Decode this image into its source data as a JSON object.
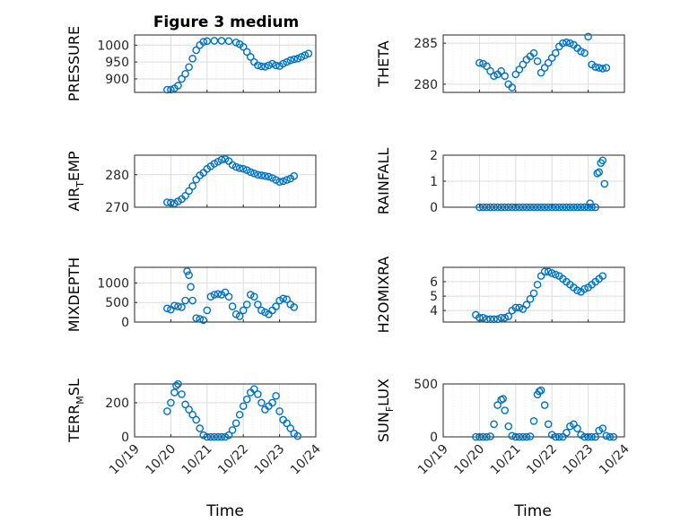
{
  "chart_data": {
    "type": "scatter",
    "title": "Figure 3 medium",
    "x_tick_labels": [
      "10/19",
      "10/20",
      "10/21",
      "10/22",
      "10/23",
      "10/24"
    ],
    "xlim_days": [
      0,
      5
    ],
    "series_color": "#0072BD",
    "panels": [
      {
        "id": "pressure",
        "ylabel": "PRESSURE",
        "ylim": [
          860,
          1030
        ],
        "yticks": [
          900,
          950,
          1000
        ],
        "points": [
          [
            0.9,
            868
          ],
          [
            1.0,
            868
          ],
          [
            1.1,
            872
          ],
          [
            1.2,
            880
          ],
          [
            1.3,
            900
          ],
          [
            1.4,
            915
          ],
          [
            1.5,
            935
          ],
          [
            1.6,
            960
          ],
          [
            1.7,
            985
          ],
          [
            1.8,
            1000
          ],
          [
            1.9,
            1010
          ],
          [
            2.0,
            1012
          ],
          [
            2.2,
            1013
          ],
          [
            2.4,
            1013
          ],
          [
            2.6,
            1012
          ],
          [
            2.8,
            1008
          ],
          [
            2.9,
            1003
          ],
          [
            3.0,
            995
          ],
          [
            3.1,
            980
          ],
          [
            3.2,
            965
          ],
          [
            3.3,
            950
          ],
          [
            3.4,
            940
          ],
          [
            3.5,
            937
          ],
          [
            3.6,
            936
          ],
          [
            3.7,
            940
          ],
          [
            3.8,
            945
          ],
          [
            3.9,
            940
          ],
          [
            4.0,
            938
          ],
          [
            4.1,
            945
          ],
          [
            4.2,
            950
          ],
          [
            4.3,
            955
          ],
          [
            4.4,
            958
          ],
          [
            4.5,
            960
          ],
          [
            4.6,
            965
          ],
          [
            4.7,
            970
          ],
          [
            4.8,
            975
          ]
        ]
      },
      {
        "id": "theta",
        "ylabel": "THETA",
        "ylim": [
          279,
          286
        ],
        "yticks": [
          280,
          285
        ],
        "points": [
          [
            1.0,
            282.6
          ],
          [
            1.1,
            282.5
          ],
          [
            1.2,
            282.2
          ],
          [
            1.3,
            281.6
          ],
          [
            1.4,
            281.0
          ],
          [
            1.5,
            281.2
          ],
          [
            1.6,
            281.6
          ],
          [
            1.7,
            281.0
          ],
          [
            1.8,
            280.0
          ],
          [
            1.9,
            279.6
          ],
          [
            2.0,
            281.2
          ],
          [
            2.1,
            281.8
          ],
          [
            2.2,
            282.4
          ],
          [
            2.3,
            283.0
          ],
          [
            2.4,
            283.4
          ],
          [
            2.5,
            283.8
          ],
          [
            2.6,
            282.8
          ],
          [
            2.7,
            281.4
          ],
          [
            2.8,
            282.0
          ],
          [
            2.9,
            282.6
          ],
          [
            3.0,
            283.2
          ],
          [
            3.1,
            283.8
          ],
          [
            3.2,
            284.6
          ],
          [
            3.3,
            285.0
          ],
          [
            3.4,
            285.1
          ],
          [
            3.5,
            285.0
          ],
          [
            3.6,
            284.8
          ],
          [
            3.7,
            284.4
          ],
          [
            3.8,
            284.0
          ],
          [
            3.9,
            283.8
          ],
          [
            4.0,
            285.8
          ],
          [
            4.1,
            282.4
          ],
          [
            4.2,
            282.1
          ],
          [
            4.3,
            282.0
          ],
          [
            4.4,
            281.9
          ],
          [
            4.5,
            282.0
          ]
        ]
      },
      {
        "id": "air_temp",
        "ylabel_main": "AIR",
        "ylabel_sub": "T",
        "ylabel_rest": "EMP",
        "ylim": [
          270,
          286
        ],
        "yticks": [
          270,
          280
        ],
        "points": [
          [
            0.9,
            271.5
          ],
          [
            1.0,
            271.4
          ],
          [
            1.1,
            271.2
          ],
          [
            1.2,
            271.8
          ],
          [
            1.3,
            272.5
          ],
          [
            1.4,
            273.5
          ],
          [
            1.5,
            275.0
          ],
          [
            1.6,
            276.5
          ],
          [
            1.7,
            278.5
          ],
          [
            1.8,
            279.8
          ],
          [
            1.9,
            280.6
          ],
          [
            2.0,
            281.8
          ],
          [
            2.1,
            282.6
          ],
          [
            2.2,
            283.4
          ],
          [
            2.3,
            284.0
          ],
          [
            2.4,
            284.6
          ],
          [
            2.5,
            284.8
          ],
          [
            2.6,
            284.2
          ],
          [
            2.7,
            283.0
          ],
          [
            2.8,
            282.4
          ],
          [
            2.9,
            282.0
          ],
          [
            3.0,
            281.8
          ],
          [
            3.1,
            281.4
          ],
          [
            3.2,
            280.8
          ],
          [
            3.3,
            280.4
          ],
          [
            3.4,
            280.0
          ],
          [
            3.5,
            279.8
          ],
          [
            3.6,
            279.6
          ],
          [
            3.7,
            279.4
          ],
          [
            3.8,
            279.0
          ],
          [
            3.9,
            278.4
          ],
          [
            4.0,
            277.8
          ],
          [
            4.1,
            278.0
          ],
          [
            4.2,
            278.4
          ],
          [
            4.3,
            278.8
          ],
          [
            4.4,
            279.6
          ]
        ]
      },
      {
        "id": "rainfall",
        "ylabel": "RAINFALL",
        "ylim": [
          0,
          2
        ],
        "yticks": [
          0,
          1,
          2
        ],
        "points": [
          [
            1.0,
            0
          ],
          [
            1.1,
            0
          ],
          [
            1.2,
            0
          ],
          [
            1.3,
            0
          ],
          [
            1.4,
            0
          ],
          [
            1.5,
            0
          ],
          [
            1.6,
            0
          ],
          [
            1.7,
            0
          ],
          [
            1.8,
            0
          ],
          [
            1.9,
            0
          ],
          [
            2.0,
            0
          ],
          [
            2.1,
            0
          ],
          [
            2.2,
            0
          ],
          [
            2.3,
            0
          ],
          [
            2.4,
            0
          ],
          [
            2.5,
            0
          ],
          [
            2.6,
            0
          ],
          [
            2.7,
            0
          ],
          [
            2.8,
            0
          ],
          [
            2.9,
            0
          ],
          [
            3.0,
            0
          ],
          [
            3.1,
            0
          ],
          [
            3.2,
            0
          ],
          [
            3.3,
            0
          ],
          [
            3.4,
            0
          ],
          [
            3.5,
            0
          ],
          [
            3.6,
            0
          ],
          [
            3.7,
            0
          ],
          [
            3.8,
            0
          ],
          [
            3.9,
            0
          ],
          [
            4.0,
            0
          ],
          [
            4.1,
            0
          ],
          [
            4.2,
            0
          ],
          [
            4.05,
            0.15
          ],
          [
            4.25,
            1.3
          ],
          [
            4.3,
            1.35
          ],
          [
            4.35,
            1.7
          ],
          [
            4.4,
            1.8
          ],
          [
            4.45,
            0.9
          ]
        ]
      },
      {
        "id": "mixdepth",
        "ylabel": "MIXDEPTH",
        "ylim": [
          0,
          1400
        ],
        "yticks": [
          0,
          500,
          1000
        ],
        "points": [
          [
            0.9,
            350
          ],
          [
            1.0,
            320
          ],
          [
            1.1,
            420
          ],
          [
            1.2,
            400
          ],
          [
            1.3,
            380
          ],
          [
            1.4,
            550
          ],
          [
            1.45,
            1300
          ],
          [
            1.5,
            1200
          ],
          [
            1.55,
            900
          ],
          [
            1.6,
            550
          ],
          [
            1.7,
            100
          ],
          [
            1.8,
            80
          ],
          [
            1.9,
            50
          ],
          [
            2.0,
            300
          ],
          [
            2.1,
            650
          ],
          [
            2.2,
            700
          ],
          [
            2.3,
            720
          ],
          [
            2.4,
            700
          ],
          [
            2.5,
            760
          ],
          [
            2.6,
            650
          ],
          [
            2.7,
            400
          ],
          [
            2.8,
            200
          ],
          [
            2.9,
            150
          ],
          [
            3.0,
            300
          ],
          [
            3.1,
            450
          ],
          [
            3.2,
            700
          ],
          [
            3.3,
            650
          ],
          [
            3.4,
            450
          ],
          [
            3.5,
            300
          ],
          [
            3.6,
            250
          ],
          [
            3.7,
            200
          ],
          [
            3.8,
            300
          ],
          [
            3.9,
            400
          ],
          [
            4.0,
            550
          ],
          [
            4.1,
            600
          ],
          [
            4.2,
            580
          ],
          [
            4.3,
            450
          ],
          [
            4.4,
            380
          ]
        ]
      },
      {
        "id": "h2omixra",
        "ylabel": "H2OMIXRA",
        "ylim": [
          3.2,
          7
        ],
        "yticks": [
          4,
          5,
          6
        ],
        "points": [
          [
            0.9,
            3.7
          ],
          [
            1.0,
            3.5
          ],
          [
            1.1,
            3.5
          ],
          [
            1.2,
            3.4
          ],
          [
            1.3,
            3.4
          ],
          [
            1.4,
            3.4
          ],
          [
            1.5,
            3.4
          ],
          [
            1.6,
            3.5
          ],
          [
            1.7,
            3.5
          ],
          [
            1.8,
            3.6
          ],
          [
            1.9,
            4.0
          ],
          [
            2.0,
            4.2
          ],
          [
            2.1,
            4.2
          ],
          [
            2.2,
            4.1
          ],
          [
            2.3,
            4.4
          ],
          [
            2.4,
            4.8
          ],
          [
            2.5,
            5.2
          ],
          [
            2.6,
            5.8
          ],
          [
            2.7,
            6.4
          ],
          [
            2.8,
            6.7
          ],
          [
            2.9,
            6.7
          ],
          [
            3.0,
            6.6
          ],
          [
            3.1,
            6.5
          ],
          [
            3.2,
            6.4
          ],
          [
            3.3,
            6.2
          ],
          [
            3.4,
            6.0
          ],
          [
            3.5,
            5.8
          ],
          [
            3.6,
            5.6
          ],
          [
            3.7,
            5.4
          ],
          [
            3.8,
            5.3
          ],
          [
            3.9,
            5.5
          ],
          [
            4.0,
            5.6
          ],
          [
            4.1,
            5.8
          ],
          [
            4.2,
            6.0
          ],
          [
            4.3,
            6.2
          ],
          [
            4.4,
            6.4
          ]
        ]
      },
      {
        "id": "terr_msl",
        "ylabel_main": "TERR",
        "ylabel_sub": "M",
        "ylabel_rest": "SL",
        "ylim": [
          0,
          310
        ],
        "yticks": [
          0,
          200
        ],
        "points": [
          [
            0.9,
            150
          ],
          [
            1.0,
            200
          ],
          [
            1.1,
            260
          ],
          [
            1.15,
            300
          ],
          [
            1.2,
            310
          ],
          [
            1.3,
            250
          ],
          [
            1.4,
            190
          ],
          [
            1.5,
            160
          ],
          [
            1.6,
            130
          ],
          [
            1.7,
            100
          ],
          [
            1.8,
            50
          ],
          [
            1.9,
            10
          ],
          [
            2.0,
            0
          ],
          [
            2.1,
            0
          ],
          [
            2.2,
            0
          ],
          [
            2.3,
            0
          ],
          [
            2.4,
            0
          ],
          [
            2.5,
            0
          ],
          [
            2.6,
            10
          ],
          [
            2.7,
            40
          ],
          [
            2.8,
            80
          ],
          [
            2.9,
            130
          ],
          [
            3.0,
            180
          ],
          [
            3.1,
            220
          ],
          [
            3.2,
            260
          ],
          [
            3.3,
            280
          ],
          [
            3.4,
            250
          ],
          [
            3.5,
            200
          ],
          [
            3.6,
            160
          ],
          [
            3.7,
            180
          ],
          [
            3.8,
            200
          ],
          [
            3.9,
            240
          ],
          [
            4.0,
            150
          ],
          [
            4.1,
            100
          ],
          [
            4.2,
            80
          ],
          [
            4.3,
            50
          ],
          [
            4.4,
            20
          ],
          [
            4.5,
            5
          ]
        ]
      },
      {
        "id": "sun_flux",
        "ylabel_main": "SUN",
        "ylabel_sub": "F",
        "ylabel_rest": "LUX",
        "ylim": [
          0,
          500
        ],
        "yticks": [
          0,
          500
        ],
        "points": [
          [
            0.9,
            0
          ],
          [
            1.0,
            0
          ],
          [
            1.1,
            0
          ],
          [
            1.2,
            0
          ],
          [
            1.3,
            5
          ],
          [
            1.4,
            120
          ],
          [
            1.5,
            300
          ],
          [
            1.6,
            350
          ],
          [
            1.65,
            360
          ],
          [
            1.7,
            250
          ],
          [
            1.8,
            100
          ],
          [
            1.9,
            10
          ],
          [
            2.0,
            0
          ],
          [
            2.1,
            0
          ],
          [
            2.2,
            0
          ],
          [
            2.3,
            0
          ],
          [
            2.4,
            5
          ],
          [
            2.5,
            150
          ],
          [
            2.6,
            400
          ],
          [
            2.65,
            430
          ],
          [
            2.7,
            440
          ],
          [
            2.8,
            300
          ],
          [
            2.9,
            120
          ],
          [
            3.0,
            20
          ],
          [
            3.1,
            0
          ],
          [
            3.2,
            0
          ],
          [
            3.3,
            0
          ],
          [
            3.4,
            40
          ],
          [
            3.5,
            100
          ],
          [
            3.6,
            120
          ],
          [
            3.7,
            80
          ],
          [
            3.8,
            20
          ],
          [
            3.9,
            0
          ],
          [
            4.0,
            0
          ],
          [
            4.1,
            0
          ],
          [
            4.2,
            0
          ],
          [
            4.3,
            60
          ],
          [
            4.4,
            80
          ],
          [
            4.5,
            10
          ],
          [
            4.6,
            0
          ],
          [
            4.7,
            0
          ]
        ]
      }
    ],
    "xlabel": "Time"
  }
}
